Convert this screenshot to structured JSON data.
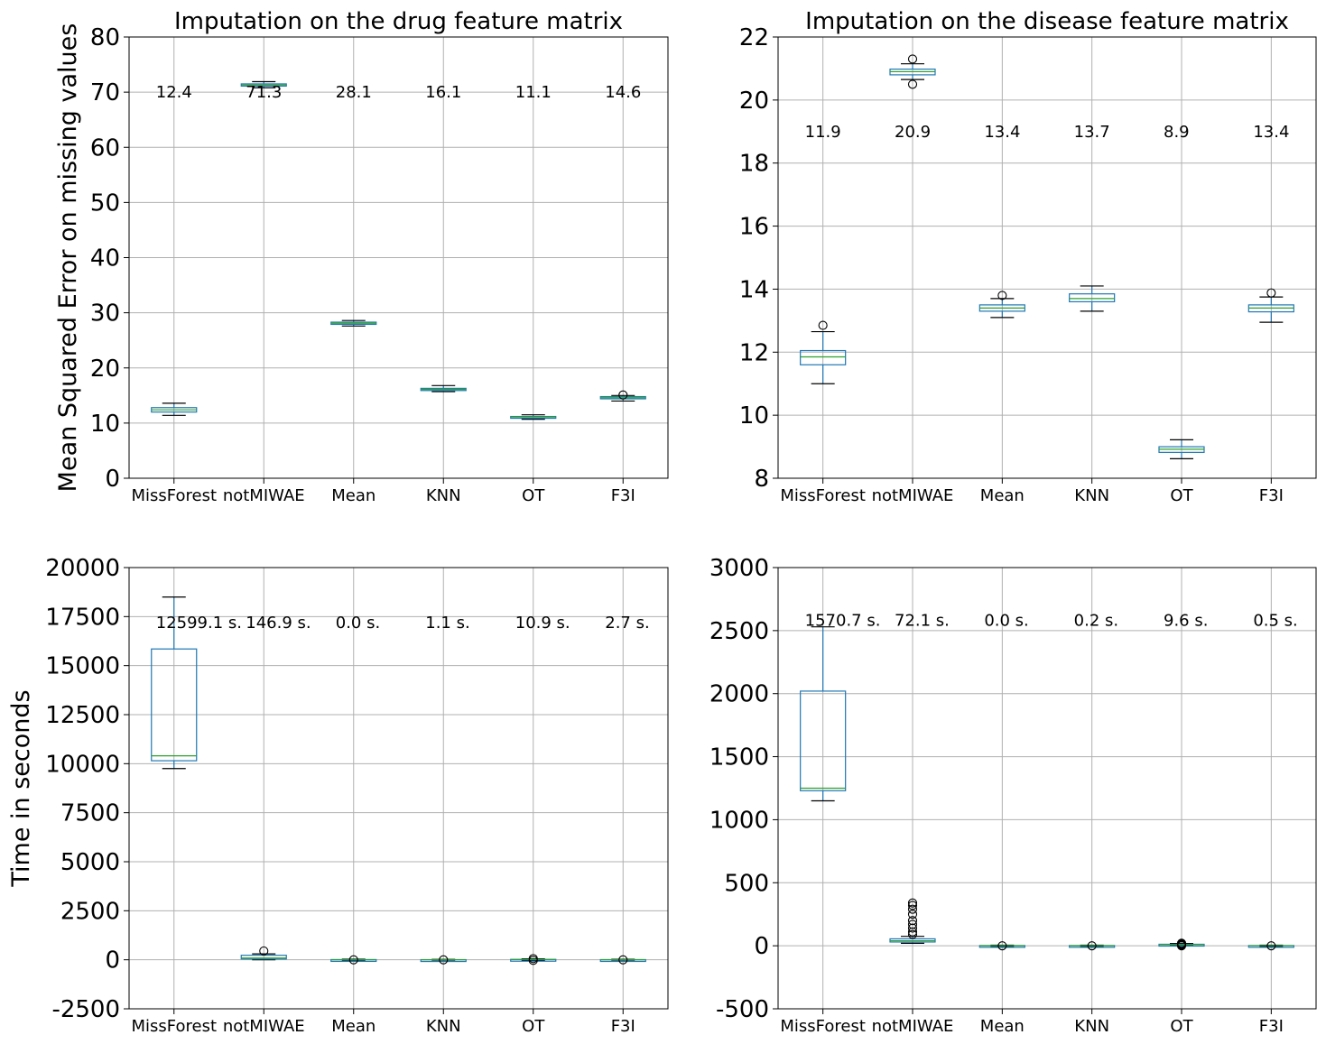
{
  "chart_data": [
    {
      "type": "box",
      "title": "Imputation on the drug feature matrix",
      "ylabel": "Mean Squared Error on missing values",
      "xlabel": "",
      "ylim": [
        0,
        80
      ],
      "yticks": [
        0,
        10,
        20,
        30,
        40,
        50,
        60,
        70,
        80
      ],
      "ytick_labels": [
        "0",
        "10",
        "20",
        "30",
        "40",
        "50",
        "60",
        "70",
        "80"
      ],
      "grid": true,
      "annotation_y": 70,
      "categories": [
        "MissForest",
        "notMIWAE",
        "Mean",
        "KNN",
        "OT",
        "F3I"
      ],
      "annotations": [
        "12.4",
        "71.3",
        "28.1",
        "16.1",
        "11.1",
        "14.6"
      ],
      "boxes": [
        {
          "whislo": 11.4,
          "q1": 12.0,
          "med": 12.4,
          "q3": 12.8,
          "whishi": 13.6,
          "fliers": []
        },
        {
          "whislo": 70.8,
          "q1": 71.1,
          "med": 71.3,
          "q3": 71.5,
          "whishi": 71.9,
          "fliers": []
        },
        {
          "whislo": 27.6,
          "q1": 27.9,
          "med": 28.1,
          "q3": 28.3,
          "whishi": 28.6,
          "fliers": []
        },
        {
          "whislo": 15.7,
          "q1": 15.9,
          "med": 16.1,
          "q3": 16.3,
          "whishi": 16.8,
          "fliers": []
        },
        {
          "whislo": 10.7,
          "q1": 10.9,
          "med": 11.1,
          "q3": 11.2,
          "whishi": 11.5,
          "fliers": []
        },
        {
          "whislo": 14.0,
          "q1": 14.4,
          "med": 14.6,
          "q3": 14.8,
          "whishi": 15.0,
          "fliers": [
            15.1
          ]
        }
      ]
    },
    {
      "type": "box",
      "title": "Imputation on the disease feature matrix",
      "ylabel": "",
      "xlabel": "",
      "ylim": [
        8,
        22
      ],
      "yticks": [
        8,
        10,
        12,
        14,
        16,
        18,
        20,
        22
      ],
      "ytick_labels": [
        "8",
        "10",
        "12",
        "14",
        "16",
        "18",
        "20",
        "22"
      ],
      "grid": true,
      "annotation_y": 19,
      "categories": [
        "MissForest",
        "notMIWAE",
        "Mean",
        "KNN",
        "OT",
        "F3I"
      ],
      "annotations": [
        "11.9",
        "20.9",
        "13.4",
        "13.7",
        "8.9",
        "13.4"
      ],
      "boxes": [
        {
          "whislo": 11.0,
          "q1": 11.6,
          "med": 11.85,
          "q3": 12.05,
          "whishi": 12.65,
          "fliers": [
            12.85
          ]
        },
        {
          "whislo": 20.65,
          "q1": 20.8,
          "med": 20.9,
          "q3": 20.98,
          "whishi": 21.15,
          "fliers": [
            21.3,
            20.5
          ]
        },
        {
          "whislo": 13.1,
          "q1": 13.3,
          "med": 13.4,
          "q3": 13.5,
          "whishi": 13.7,
          "fliers": [
            13.8
          ]
        },
        {
          "whislo": 13.3,
          "q1": 13.6,
          "med": 13.7,
          "q3": 13.85,
          "whishi": 14.1,
          "fliers": []
        },
        {
          "whislo": 8.62,
          "q1": 8.82,
          "med": 8.92,
          "q3": 9.0,
          "whishi": 9.22,
          "fliers": []
        },
        {
          "whislo": 12.95,
          "q1": 13.28,
          "med": 13.4,
          "q3": 13.5,
          "whishi": 13.75,
          "fliers": [
            13.88
          ]
        }
      ]
    },
    {
      "type": "box",
      "title": "",
      "ylabel": "Time in seconds",
      "xlabel": "",
      "ylim": [
        -2500,
        20000
      ],
      "yticks": [
        -2500,
        0,
        2500,
        5000,
        7500,
        10000,
        12500,
        15000,
        17500,
        20000
      ],
      "ytick_labels": [
        "-2500",
        "0",
        "2500",
        "5000",
        "7500",
        "10000",
        "12500",
        "15000",
        "17500",
        "20000"
      ],
      "grid": true,
      "annotation_y": 17200,
      "categories": [
        "MissForest",
        "notMIWAE",
        "Mean",
        "KNN",
        "OT",
        "F3I"
      ],
      "annotations": [
        "12599.1 s.",
        "146.9 s.",
        "0.0 s.",
        "1.1 s.",
        "10.9 s.",
        "2.7 s."
      ],
      "boxes": [
        {
          "whislo": 9750,
          "q1": 10150,
          "med": 10400,
          "q3": 15850,
          "whishi": 18500,
          "fliers": []
        },
        {
          "whislo": 0,
          "q1": 40,
          "med": 90,
          "q3": 230,
          "whishi": 300,
          "fliers": [
            450
          ]
        },
        {
          "whislo": -30,
          "q1": -10,
          "med": 0,
          "q3": 10,
          "whishi": 30,
          "fliers": [
            0
          ]
        },
        {
          "whislo": -20,
          "q1": -5,
          "med": 1,
          "q3": 5,
          "whishi": 20,
          "fliers": [
            0
          ]
        },
        {
          "whislo": -30,
          "q1": -10,
          "med": 10,
          "q3": 20,
          "whishi": 50,
          "fliers": [
            -30,
            60
          ]
        },
        {
          "whislo": -20,
          "q1": -5,
          "med": 3,
          "q3": 8,
          "whishi": 25,
          "fliers": [
            0
          ]
        }
      ]
    },
    {
      "type": "box",
      "title": "",
      "ylabel": "",
      "xlabel": "",
      "ylim": [
        -500,
        3000
      ],
      "yticks": [
        -500,
        0,
        500,
        1000,
        1500,
        2000,
        2500,
        3000
      ],
      "ytick_labels": [
        "-500",
        "0",
        "500",
        "1000",
        "1500",
        "2000",
        "2500",
        "3000"
      ],
      "grid": true,
      "annotation_y": 2580,
      "categories": [
        "MissForest",
        "notMIWAE",
        "Mean",
        "KNN",
        "OT",
        "F3I"
      ],
      "annotations": [
        "1570.7 s.",
        "72.1 s.",
        "0.0 s.",
        "0.2 s.",
        "9.6 s.",
        "0.5 s."
      ],
      "boxes": [
        {
          "whislo": 1150,
          "q1": 1230,
          "med": 1250,
          "q3": 2020,
          "whishi": 2530,
          "fliers": []
        },
        {
          "whislo": 20,
          "q1": 30,
          "med": 40,
          "q3": 55,
          "whishi": 75,
          "fliers": [
            90,
            110,
            140,
            170,
            200,
            250,
            290,
            320,
            340
          ]
        },
        {
          "whislo": -5,
          "q1": -2,
          "med": 0,
          "q3": 2,
          "whishi": 5,
          "fliers": [
            0
          ]
        },
        {
          "whislo": -5,
          "q1": -2,
          "med": 0.2,
          "q3": 2,
          "whishi": 5,
          "fliers": [
            0
          ]
        },
        {
          "whislo": 0,
          "q1": 3,
          "med": 9.6,
          "q3": 12,
          "whishi": 18,
          "fliers": [
            0,
            5,
            10,
            15,
            20
          ]
        },
        {
          "whislo": -5,
          "q1": -2,
          "med": 0.5,
          "q3": 2,
          "whishi": 5,
          "fliers": [
            0
          ]
        }
      ]
    }
  ]
}
